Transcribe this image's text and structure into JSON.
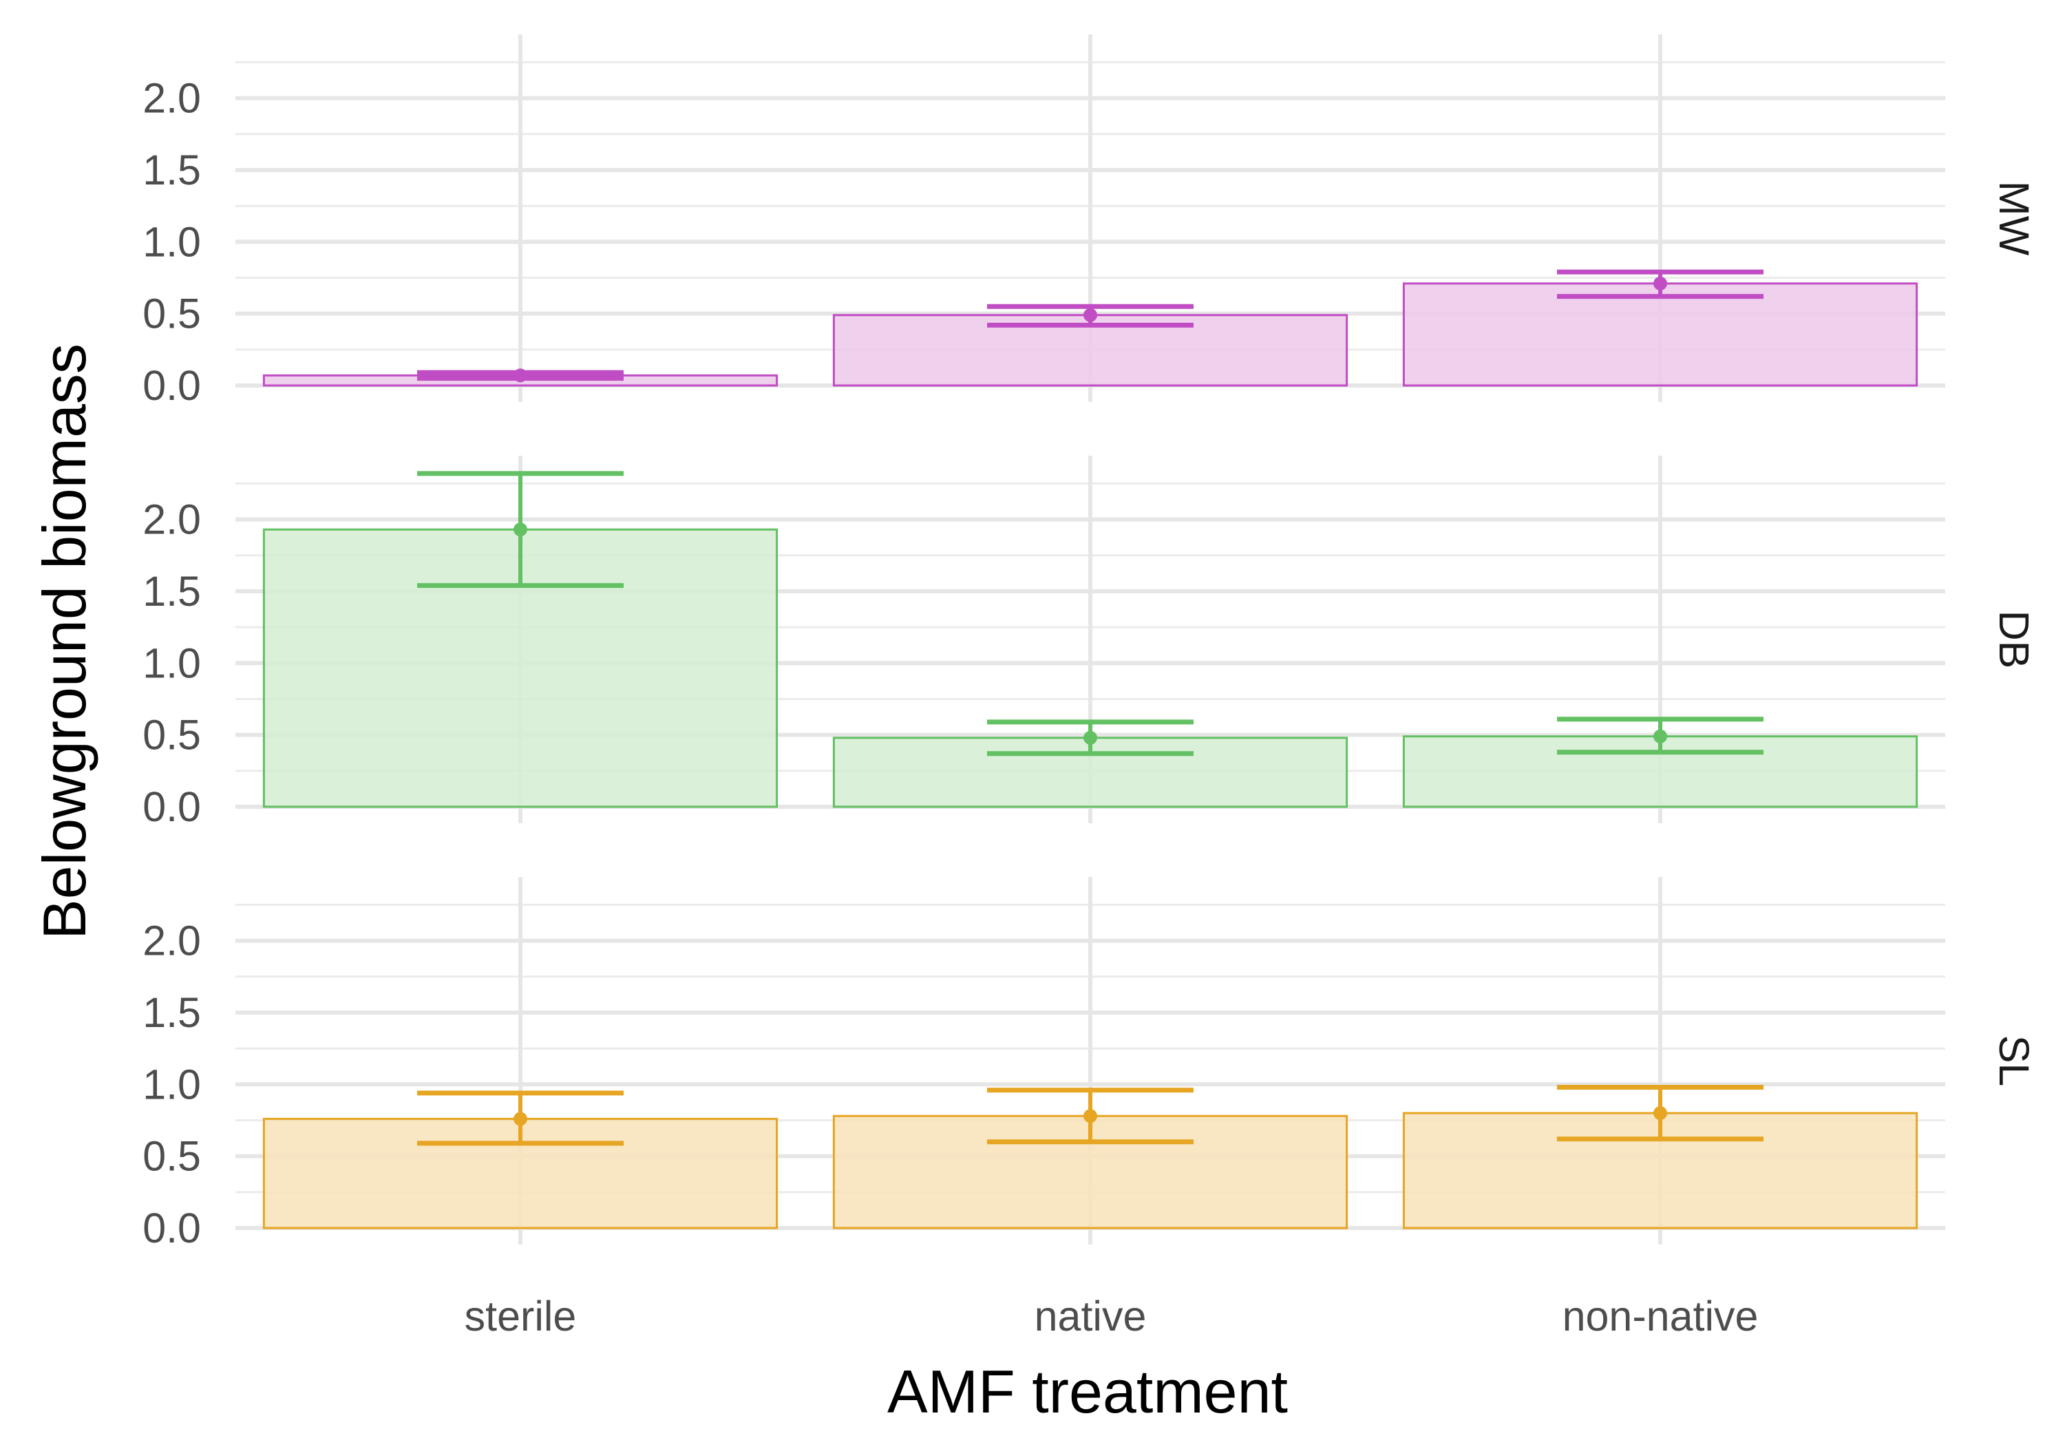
{
  "chart_data": {
    "type": "bar",
    "facet_direction": "rows",
    "categories": [
      "sterile",
      "native",
      "non-native"
    ],
    "xlabel": "AMF treatment",
    "ylabel": "Belowground biomass",
    "ylim": [
      0,
      2.3
    ],
    "yticks": [
      "0.0",
      "0.5",
      "1.0",
      "1.5",
      "2.0"
    ],
    "grid": true,
    "error_bars": true,
    "panels": [
      {
        "label": "MW",
        "color": "#C04DC4",
        "fill": "#ECC8EA",
        "values": [
          0.07,
          0.49,
          0.71
        ],
        "error_low": [
          0.05,
          0.42,
          0.62
        ],
        "error_high": [
          0.09,
          0.55,
          0.79
        ]
      },
      {
        "label": "DB",
        "color": "#63C063",
        "fill": "#D4EDD2",
        "values": [
          1.93,
          0.48,
          0.49
        ],
        "error_low": [
          1.54,
          0.37,
          0.38
        ],
        "error_high": [
          2.32,
          0.59,
          0.61
        ]
      },
      {
        "label": "SL",
        "color": "#E6A522",
        "fill": "#F8E2B8",
        "values": [
          0.76,
          0.78,
          0.8
        ],
        "error_low": [
          0.59,
          0.6,
          0.62
        ],
        "error_high": [
          0.94,
          0.96,
          0.98
        ]
      }
    ]
  }
}
